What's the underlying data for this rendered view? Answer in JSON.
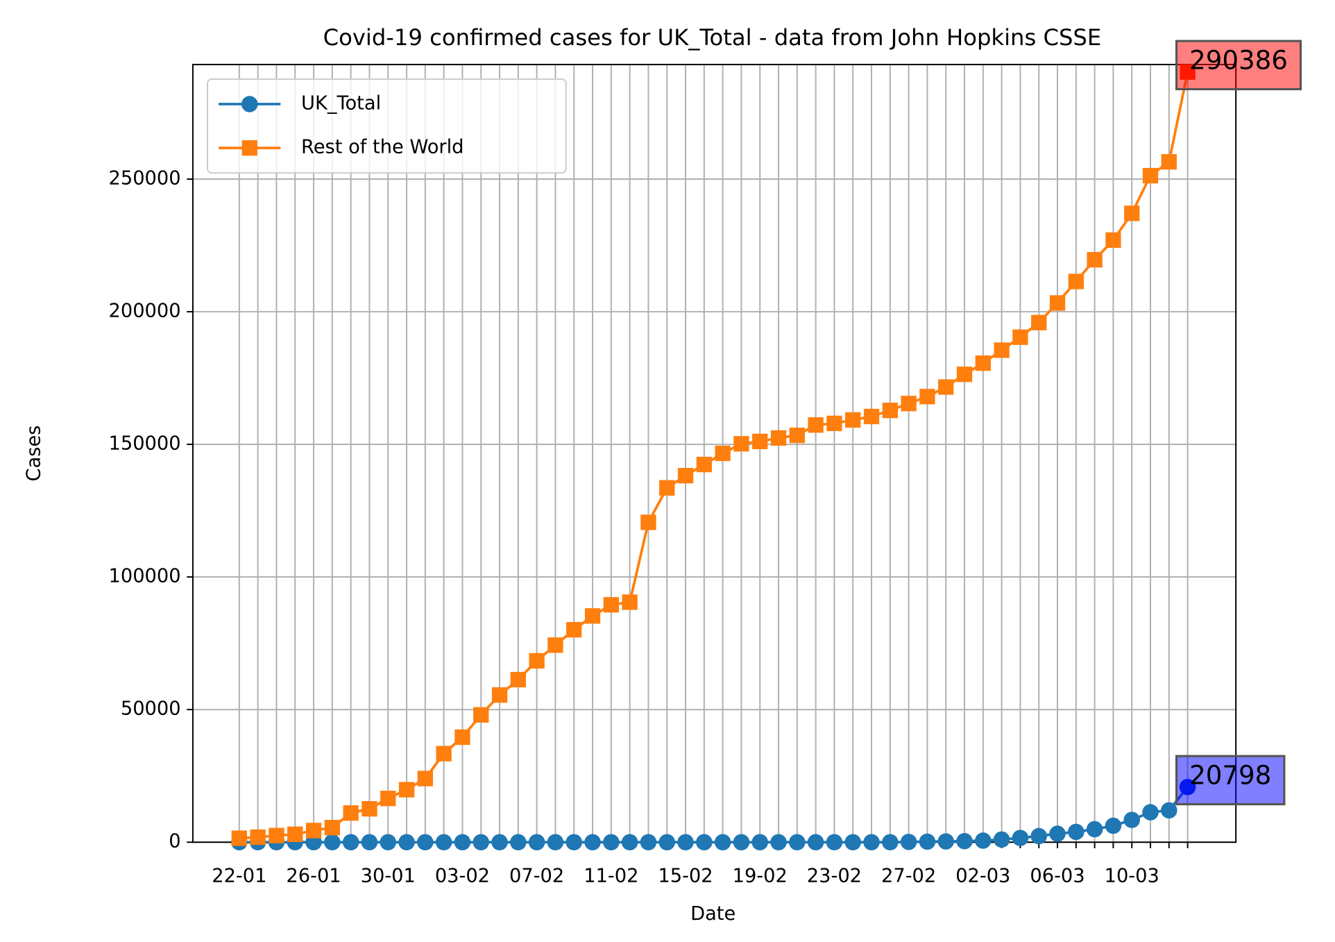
{
  "chart_data": {
    "type": "line",
    "title": "Covid-19 confirmed cases for UK_Total - data from John Hopkins CSSE",
    "x_label": "Date",
    "y_label": "Cases",
    "categories": [
      "22-01",
      null,
      null,
      null,
      "26-01",
      null,
      null,
      null,
      "30-01",
      null,
      null,
      null,
      "03-02",
      null,
      null,
      null,
      "07-02",
      null,
      null,
      null,
      "11-02",
      null,
      null,
      null,
      "15-02",
      null,
      null,
      null,
      "19-02",
      null,
      null,
      null,
      "23-02",
      null,
      null,
      null,
      "27-02",
      null,
      null,
      null,
      "02-03",
      null,
      null,
      null,
      "06-03",
      null,
      null,
      null,
      "10-03",
      null,
      null,
      null
    ],
    "series": [
      {
        "name": "UK_Total",
        "color": "#1f77b4",
        "marker": "circle",
        "annotation_color": "#0000ff",
        "values": [
          0,
          0,
          0,
          0,
          0,
          0,
          0,
          0,
          0,
          0,
          0,
          0,
          0,
          0,
          0,
          0,
          0,
          0,
          0,
          0,
          0,
          0,
          0,
          0,
          0,
          0,
          0,
          0,
          0,
          0,
          0,
          0,
          0,
          0,
          0,
          0,
          100,
          200,
          300,
          400,
          600,
          1000,
          1600,
          2300,
          3200,
          3900,
          4900,
          6200,
          8400,
          11300,
          12000,
          20798
        ]
      },
      {
        "name": "Rest of the World",
        "color": "#ff7f0e",
        "marker": "square",
        "annotation_color": "#ff0000",
        "values": [
          1500,
          1900,
          2500,
          3000,
          4400,
          5500,
          11000,
          12600,
          16500,
          19800,
          24000,
          33400,
          39600,
          48000,
          55500,
          61300,
          68400,
          74300,
          80100,
          85300,
          89500,
          90500,
          120600,
          133600,
          138200,
          142400,
          146600,
          150200,
          151100,
          152400,
          153400,
          157300,
          157900,
          159200,
          160500,
          162800,
          165400,
          168000,
          171600,
          176400,
          180600,
          185500,
          190400,
          195900,
          203300,
          211400,
          219600,
          227000,
          237100,
          251300,
          256500,
          290386
        ]
      }
    ],
    "ylim": [
      0,
      293200
    ],
    "yticks": [
      0,
      50000,
      100000,
      150000,
      200000,
      250000
    ],
    "grid": true,
    "legend": "upper left"
  }
}
